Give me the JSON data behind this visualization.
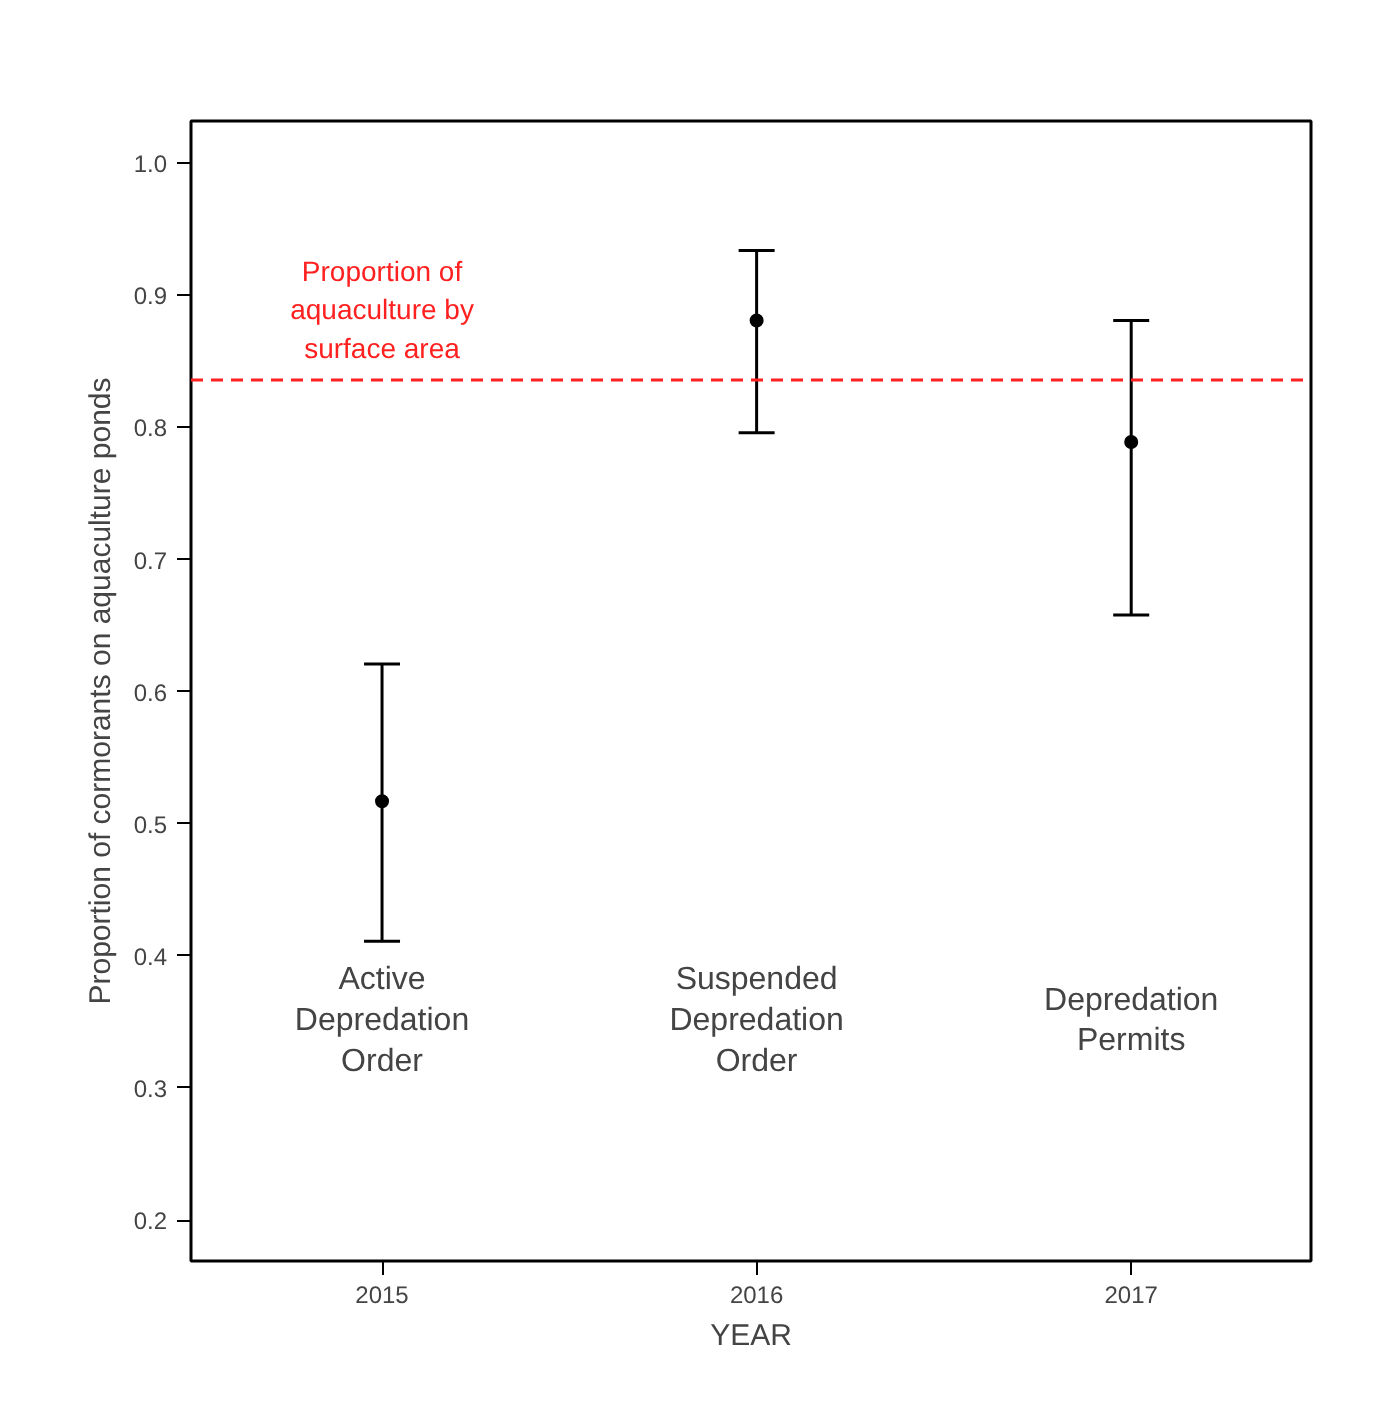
{
  "chart_data": {
    "type": "scatter",
    "xlabel": "YEAR",
    "ylabel": "Proportion of cormorants on aquaculture ponds",
    "x": [
      2015,
      2016,
      2017
    ],
    "values": [
      0.517,
      0.881,
      0.789
    ],
    "errors": [
      [
        0.411,
        0.621
      ],
      [
        0.796,
        0.934
      ],
      [
        0.658,
        0.881
      ]
    ],
    "color": "#000000",
    "marker": "circle",
    "xlim": [
      2014.49,
      2017.48
    ],
    "xticks": [
      2015,
      2016,
      2017
    ],
    "ylim": [
      0.169,
      1.032
    ],
    "yticks": [
      {
        "value": 0.2,
        "label": "0.2"
      },
      {
        "value": 0.3,
        "label": "0.3"
      },
      {
        "value": 0.4,
        "label": "0.4"
      },
      {
        "value": 0.5,
        "label": "0.5"
      },
      {
        "value": 0.6,
        "label": "0.6"
      },
      {
        "value": 0.7,
        "label": "0.7"
      },
      {
        "value": 0.8,
        "label": "0.8"
      },
      {
        "value": 0.9,
        "label": "0.9"
      },
      {
        "value": 1.0,
        "label": "1.0"
      }
    ],
    "ref_lines": [
      {
        "axis": "y",
        "value": 0.836,
        "label": "Proportion of\naquaculture by\nsurface area",
        "color": "#ff2020",
        "line_style": "dashed"
      }
    ],
    "annotations": [
      "Active\nDepredation\nOrder",
      "Suspended\nDepredation\nOrder",
      "Depredation\nPermits"
    ],
    "grid": false
  }
}
